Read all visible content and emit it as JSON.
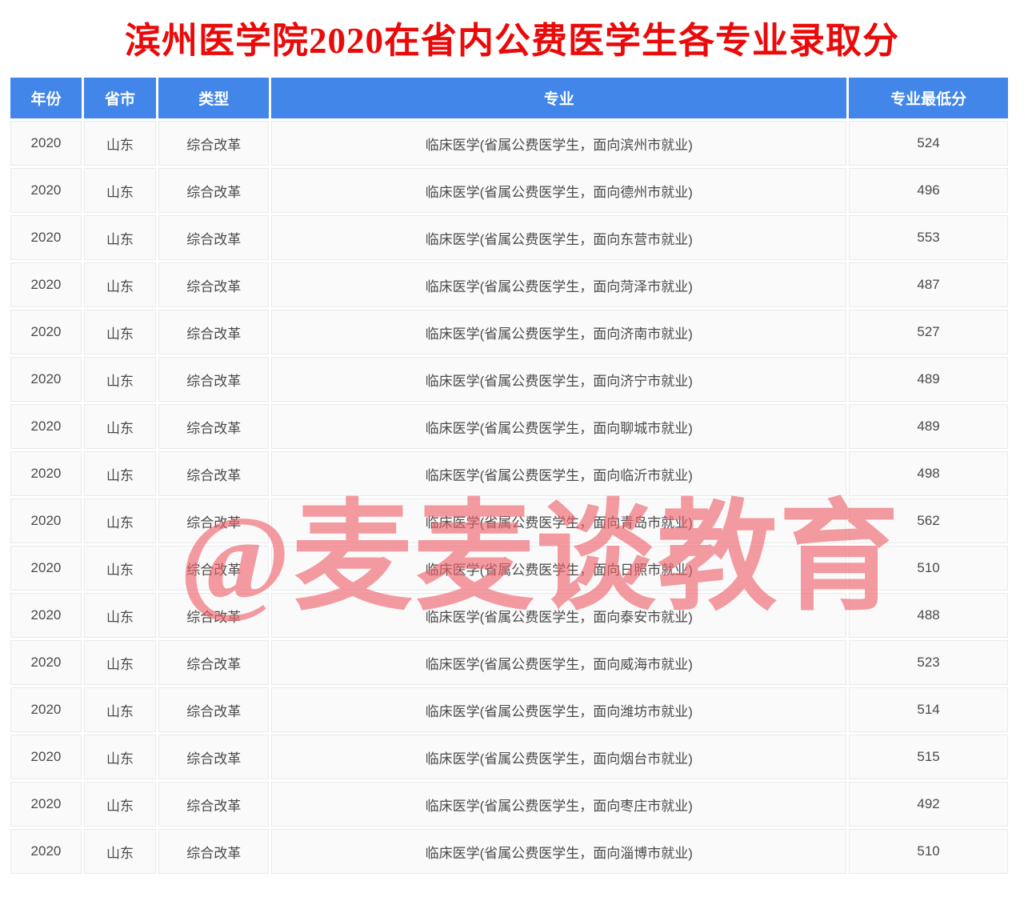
{
  "title": "滨州医学院2020在省内公费医学生各专业录取分",
  "watermark": "@麦麦谈教育",
  "colors": {
    "header-bg": "#4186e8",
    "title-red": "#ea0a0a",
    "watermark-pink": "rgba(238, 95, 104, 0.62)"
  },
  "table": {
    "columns": [
      "年份",
      "省市",
      "类型",
      "专业",
      "专业最低分"
    ],
    "row_keys": [
      "year",
      "province",
      "type",
      "major",
      "score"
    ],
    "rows": [
      {
        "year": "2020",
        "province": "山东",
        "type": "综合改革",
        "major": "临床医学(省属公费医学生，面向滨州市就业)",
        "score": "524"
      },
      {
        "year": "2020",
        "province": "山东",
        "type": "综合改革",
        "major": "临床医学(省属公费医学生，面向德州市就业)",
        "score": "496"
      },
      {
        "year": "2020",
        "province": "山东",
        "type": "综合改革",
        "major": "临床医学(省属公费医学生，面向东营市就业)",
        "score": "553"
      },
      {
        "year": "2020",
        "province": "山东",
        "type": "综合改革",
        "major": "临床医学(省属公费医学生，面向菏泽市就业)",
        "score": "487"
      },
      {
        "year": "2020",
        "province": "山东",
        "type": "综合改革",
        "major": "临床医学(省属公费医学生，面向济南市就业)",
        "score": "527"
      },
      {
        "year": "2020",
        "province": "山东",
        "type": "综合改革",
        "major": "临床医学(省属公费医学生，面向济宁市就业)",
        "score": "489"
      },
      {
        "year": "2020",
        "province": "山东",
        "type": "综合改革",
        "major": "临床医学(省属公费医学生，面向聊城市就业)",
        "score": "489"
      },
      {
        "year": "2020",
        "province": "山东",
        "type": "综合改革",
        "major": "临床医学(省属公费医学生，面向临沂市就业)",
        "score": "498"
      },
      {
        "year": "2020",
        "province": "山东",
        "type": "综合改革",
        "major": "临床医学(省属公费医学生，面向青岛市就业)",
        "score": "562"
      },
      {
        "year": "2020",
        "province": "山东",
        "type": "综合改革",
        "major": "临床医学(省属公费医学生，面向日照市就业)",
        "score": "510"
      },
      {
        "year": "2020",
        "province": "山东",
        "type": "综合改革",
        "major": "临床医学(省属公费医学生，面向泰安市就业)",
        "score": "488"
      },
      {
        "year": "2020",
        "province": "山东",
        "type": "综合改革",
        "major": "临床医学(省属公费医学生，面向威海市就业)",
        "score": "523"
      },
      {
        "year": "2020",
        "province": "山东",
        "type": "综合改革",
        "major": "临床医学(省属公费医学生，面向潍坊市就业)",
        "score": "514"
      },
      {
        "year": "2020",
        "province": "山东",
        "type": "综合改革",
        "major": "临床医学(省属公费医学生，面向烟台市就业)",
        "score": "515"
      },
      {
        "year": "2020",
        "province": "山东",
        "type": "综合改革",
        "major": "临床医学(省属公费医学生，面向枣庄市就业)",
        "score": "492"
      },
      {
        "year": "2020",
        "province": "山东",
        "type": "综合改革",
        "major": "临床医学(省属公费医学生，面向淄博市就业)",
        "score": "510"
      }
    ]
  }
}
